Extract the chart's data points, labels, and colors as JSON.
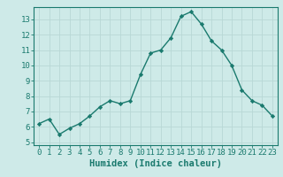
{
  "x": [
    0,
    1,
    2,
    3,
    4,
    5,
    6,
    7,
    8,
    9,
    10,
    11,
    12,
    13,
    14,
    15,
    16,
    17,
    18,
    19,
    20,
    21,
    22,
    23
  ],
  "y": [
    6.2,
    6.5,
    5.5,
    5.9,
    6.2,
    6.7,
    7.3,
    7.7,
    7.5,
    7.7,
    9.4,
    10.8,
    11.0,
    11.8,
    13.2,
    13.5,
    12.7,
    11.6,
    11.0,
    10.0,
    8.4,
    7.7,
    7.4,
    6.7
  ],
  "line_color": "#1a7a6e",
  "marker": "D",
  "marker_size": 2.2,
  "bg_color": "#ceeae8",
  "grid_color": "#b8d8d5",
  "axis_color": "#1a7a6e",
  "xlabel": "Humidex (Indice chaleur)",
  "xlabel_fontsize": 7.5,
  "tick_fontsize": 6.5,
  "xlim": [
    -0.5,
    23.5
  ],
  "ylim": [
    4.8,
    13.8
  ],
  "yticks": [
    5,
    6,
    7,
    8,
    9,
    10,
    11,
    12,
    13
  ],
  "xticks": [
    0,
    1,
    2,
    3,
    4,
    5,
    6,
    7,
    8,
    9,
    10,
    11,
    12,
    13,
    14,
    15,
    16,
    17,
    18,
    19,
    20,
    21,
    22,
    23
  ]
}
